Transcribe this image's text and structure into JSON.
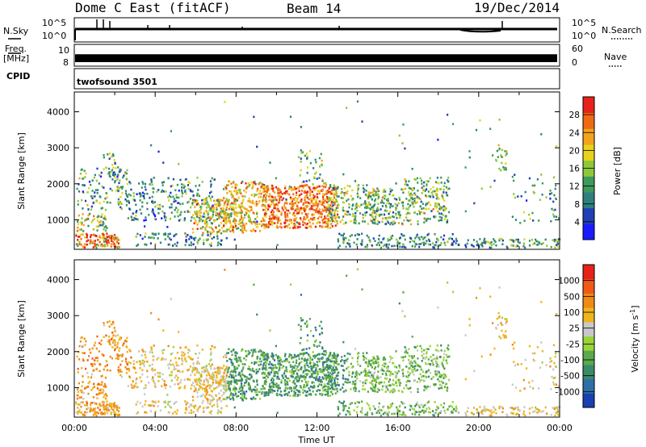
{
  "header": {
    "title": "Dome C East (fitACF)",
    "beam": "Beam 14",
    "date": "19/Dec/2014"
  },
  "panels": {
    "nsky_label": "N.Sky",
    "nsky_ticks": [
      "10^5",
      "10^0"
    ],
    "nsearch_label": "N.Search",
    "freq_label": "Freq.",
    "freq_unit": "[MHz]",
    "freq_ticks": [
      "10",
      "8"
    ],
    "nave_label": "Nave",
    "nave_ticks": [
      "60",
      "0"
    ],
    "cpid_label": "CPID",
    "cpid_value": "twofsound 3501"
  },
  "chart_data": [
    {
      "type": "heatmap",
      "name": "power",
      "ylabel": "Slant Range [km]",
      "ylim": [
        180,
        4550
      ],
      "yticks": [
        "1000",
        "2000",
        "3000",
        "4000"
      ],
      "xlim_hours": [
        0,
        24
      ],
      "xticks": [
        "00:00",
        "04:00",
        "08:00",
        "12:00",
        "16:00",
        "20:00",
        "00:00"
      ],
      "colorbar": {
        "label": "Power [dB]",
        "range": [
          0,
          32
        ],
        "ticks": [
          "4",
          "8",
          "12",
          "16",
          "20",
          "24",
          "28"
        ],
        "colors": [
          "#1a1aff",
          "#1f3fb5",
          "#2f7f7f",
          "#3d9a5c",
          "#8cc83a",
          "#e8d21a",
          "#f2a31c",
          "#f06a14",
          "#e8221a"
        ]
      }
    },
    {
      "type": "heatmap",
      "name": "velocity",
      "ylabel": "Slant Range [km]",
      "ylim": [
        180,
        4550
      ],
      "yticks": [
        "1000",
        "2000",
        "3000",
        "4000"
      ],
      "xlim_hours": [
        0,
        24
      ],
      "xticks": [
        "00:00",
        "04:00",
        "08:00",
        "12:00",
        "16:00",
        "20:00",
        "00:00"
      ],
      "xlabel": "Time UT",
      "colorbar": {
        "label": "Velocity [m s",
        "label_sup": "-1",
        "label_end": "]",
        "ticks": [
          "1000",
          "500",
          "100",
          "25",
          "-25",
          "-100",
          "-500",
          "-1000"
        ],
        "colors": [
          "#1a3fb0",
          "#2f6fa8",
          "#3a8a6a",
          "#5aa94a",
          "#9ad43a",
          "#c8c8c8",
          "#f0b41c",
          "#f08a14",
          "#f05a14",
          "#e8221a"
        ]
      }
    }
  ]
}
